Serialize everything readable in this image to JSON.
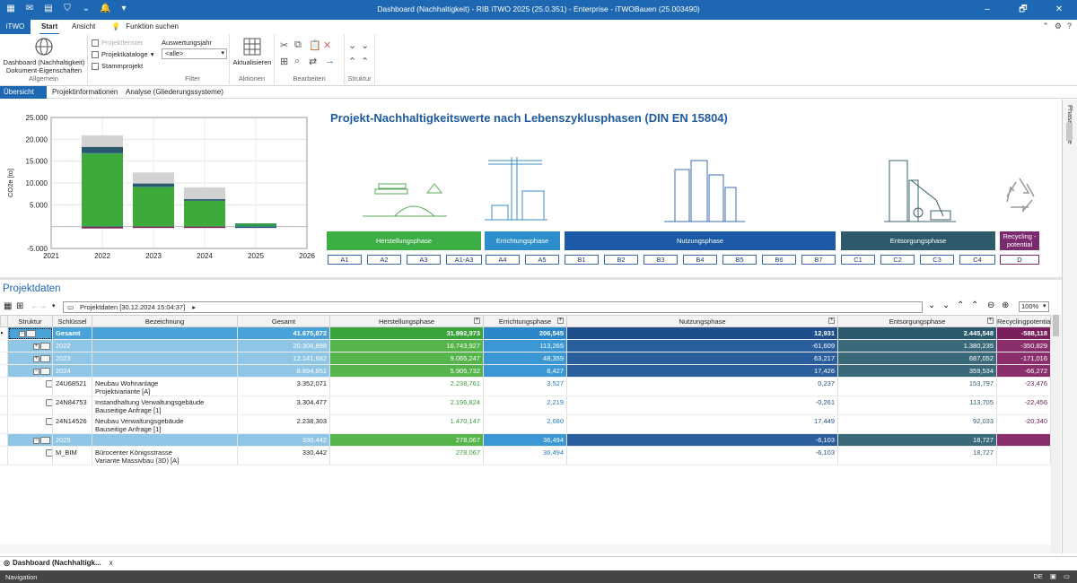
{
  "window": {
    "title": "Dashboard (Nachhaltigkeit) - RIB iTWO 2025 (25.0.351) - Enterprise - iTWOBauen (25.003490)",
    "controls": [
      "–",
      "🗗",
      "✕"
    ]
  },
  "ribbon_tabs": {
    "app": "iTWO",
    "start": "Start",
    "ansicht": "Ansicht",
    "search": "Funktion suchen"
  },
  "ribbon": {
    "allgemein": {
      "label": "Allgemein",
      "dashboard_btn_line1": "Dashboard (Nachhaltigkeit)",
      "dashboard_btn_line2": "Dokument-Eigenschaften",
      "projektfenster": "Projektfenster",
      "projektkataloge": "Projektkataloge",
      "stammprojekt": "Stammprojekt"
    },
    "filter": {
      "label": "Filter",
      "auswertungsjahr": "Auswertungsjahr",
      "auswertungsjahr_value": "<alle>"
    },
    "aktionen": {
      "label": "Aktionen",
      "aktualisieren": "Aktualisieren"
    },
    "bearbeiten": {
      "label": "Bearbeiten"
    },
    "struktur": {
      "label": "Struktur"
    }
  },
  "view_tabs": [
    "Übersicht",
    "Projektinformationen",
    "Analyse (Gliederungssysteme)"
  ],
  "chart_data": {
    "type": "bar",
    "ylabel": "CO2e [to]",
    "categories": [
      "2022",
      "2023",
      "2024",
      "2025"
    ],
    "x_ticks": [
      "2021",
      "2022",
      "2023",
      "2024",
      "2025",
      "2026"
    ],
    "y_ticks": [
      "25.000",
      "20.000",
      "15.000",
      "10.000",
      "5.000",
      "-5.000"
    ],
    "ylim": [
      -5000,
      25000
    ],
    "stacked": true,
    "series": [
      {
        "color": "#3daa3a",
        "values": [
          16743.927,
          9065.247,
          5905.732,
          278.067
        ]
      },
      {
        "color": "#2a86c8",
        "values": [
          113.265,
          48.359,
          8.427,
          36.494
        ]
      },
      {
        "color": "#1f4f8a",
        "values": [
          -61.609,
          63.217,
          17.426,
          -6.103
        ]
      },
      {
        "color": "#2b5a6e",
        "values": [
          1380.235,
          687.052,
          359.534,
          18.727
        ]
      },
      {
        "color": "#7a1f5c",
        "values": [
          -350.829,
          -171.016,
          -66.272,
          0
        ]
      }
    ],
    "grey_totals": [
      20900,
      12400,
      9000,
      0
    ]
  },
  "phases": {
    "title": "Projekt-Nachhaltigkeitswerte nach Lebenszyklusphasen (DIN EN 15804)",
    "bars": [
      {
        "label": "Herstellungsphase",
        "color": "#3dad46"
      },
      {
        "label": "Errichtungsphase",
        "color": "#2c8fcc"
      },
      {
        "label": "Nutzungsphase",
        "color": "#1c5aa6"
      },
      {
        "label": "Entsorgungsphase",
        "color": "#2d5b6b"
      },
      {
        "label": "Recycling - potential",
        "color": "#7b2a6d"
      }
    ],
    "modules": [
      "A1",
      "A2",
      "A3",
      "A1-A3",
      "A4",
      "A5",
      "B1",
      "B2",
      "B3",
      "B4",
      "B5",
      "B6",
      "B7",
      "C1",
      "C2",
      "C3",
      "C4",
      "D"
    ]
  },
  "sidepanel": {
    "label": "Phasenwerte"
  },
  "projektdaten": {
    "title": "Projektdaten",
    "path": "Projektdaten [30.12.2024 15:04:37]",
    "zoom": "100%",
    "columns": [
      "Struktur",
      "Schlüssel",
      "Bezeichnung",
      "Gesamt",
      "Herstellungsphase",
      "Errichtungsphase",
      "Nutzungsphase",
      "Entsorgungsphase",
      "Recyclingpotential"
    ],
    "rows": [
      {
        "key": "Gesamt",
        "desc": "",
        "desc2": "",
        "gesamt": "41.675,872",
        "her": "31.992,973",
        "err": "206,545",
        "nut": "12,931",
        "ent": "2.445,548",
        "rec": "-588,118"
      },
      {
        "key": "2022",
        "desc": "",
        "desc2": "",
        "gesamt": "20.308,898",
        "her": "16.743,927",
        "err": "113,265",
        "nut": "-61,609",
        "ent": "1.380,235",
        "rec": "-350,829"
      },
      {
        "key": "2023",
        "desc": "",
        "desc2": "",
        "gesamt": "12.141,682",
        "her": "9.065,247",
        "err": "48,359",
        "nut": "63,217",
        "ent": "687,052",
        "rec": "-171,016"
      },
      {
        "key": "2024",
        "desc": "",
        "desc2": "",
        "gesamt": "8.894,851",
        "her": "5.905,732",
        "err": "8,427",
        "nut": "17,426",
        "ent": "359,534",
        "rec": "-66,272"
      },
      {
        "key": "24U68521",
        "desc": "Neubau Wohnanlage",
        "desc2": "Projektvariante [A]",
        "gesamt": "3.352,071",
        "her": "2.238,761",
        "err": "3,527",
        "nut": "0,237",
        "ent": "153,797",
        "rec": "-23,476"
      },
      {
        "key": "24N84753",
        "desc": "Instandhaltung Verwaltungsgebäude",
        "desc2": "Bauseitige Anfrage [1]",
        "gesamt": "3.304,477",
        "her": "2.196,824",
        "err": "2,219",
        "nut": "-0,261",
        "ent": "113,705",
        "rec": "-22,456"
      },
      {
        "key": "24N14526",
        "desc": "Neubau Verwaltungsgebäude",
        "desc2": "Bauseitige Anfrage [1]",
        "gesamt": "2.238,303",
        "her": "1.470,147",
        "err": "2,680",
        "nut": "17,449",
        "ent": "92,033",
        "rec": "-20,340"
      },
      {
        "key": "2025",
        "desc": "",
        "desc2": "",
        "gesamt": "330,442",
        "her": "278,067",
        "err": "36,494",
        "nut": "-6,103",
        "ent": "18,727",
        "rec": ""
      },
      {
        "key": "M_BIM",
        "desc": "Bürocenter Königsstrasse",
        "desc2": "Variante Massivbau (3D) [A]",
        "gesamt": "330,442",
        "her": "278,067",
        "err": "36,494",
        "nut": "-6,103",
        "ent": "18,727",
        "rec": ""
      }
    ]
  },
  "bottom": {
    "doc_tab": "Dashboard (Nachhaltigk...",
    "doc_close": "x",
    "navigation": "Navigation",
    "lang": "DE"
  }
}
